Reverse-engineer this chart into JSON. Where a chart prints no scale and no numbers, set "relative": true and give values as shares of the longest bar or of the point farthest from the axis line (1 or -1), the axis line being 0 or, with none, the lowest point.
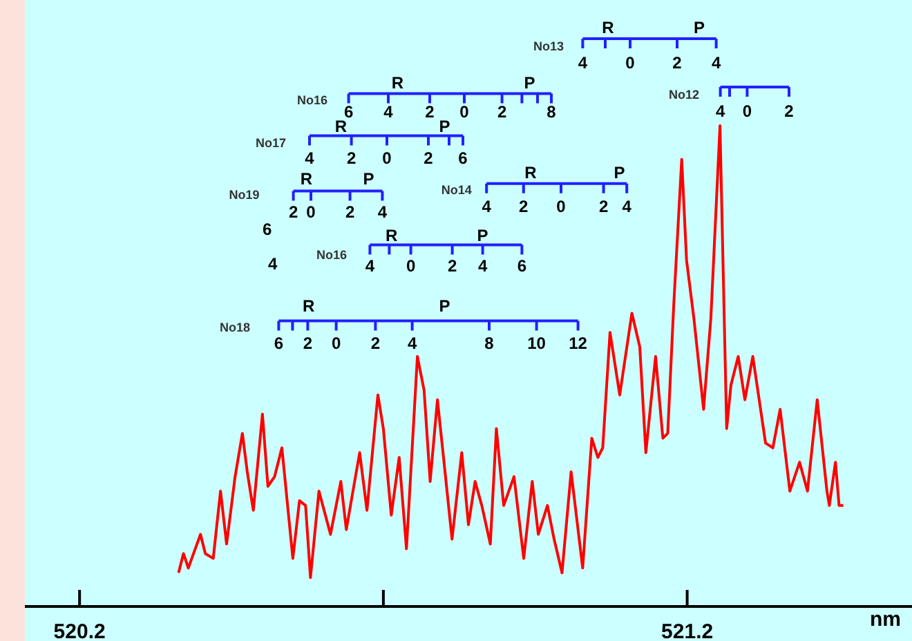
{
  "chart_data": {
    "type": "line",
    "relative": true,
    "xlabel": "nm",
    "x": [
      520.363,
      520.371,
      520.379,
      520.399,
      520.407,
      520.42,
      520.432,
      520.442,
      520.456,
      520.468,
      520.476,
      520.486,
      520.501,
      520.51,
      520.521,
      520.533,
      520.551,
      520.562,
      520.572,
      520.58,
      520.594,
      520.613,
      520.63,
      520.639,
      520.661,
      520.673,
      520.691,
      520.7,
      520.713,
      520.726,
      520.738,
      520.756,
      520.767,
      520.777,
      520.789,
      520.799,
      520.813,
      520.829,
      520.84,
      520.851,
      520.862,
      520.876,
      520.886,
      520.898,
      520.915,
      520.931,
      520.945,
      520.955,
      520.97,
      520.981,
      520.994,
      521.009,
      521.028,
      521.043,
      521.053,
      521.061,
      521.073,
      521.089,
      521.109,
      521.122,
      521.132,
      521.148,
      521.16,
      521.168,
      521.178,
      521.191,
      521.199,
      521.211,
      521.227,
      521.239,
      521.254,
      521.265,
      521.272,
      521.284,
      521.295,
      521.308,
      521.329,
      521.341,
      521.353,
      521.369,
      521.385,
      521.398,
      521.414,
      521.43,
      521.434,
      521.444,
      521.45,
      521.457
    ],
    "series": [
      {
        "color": "#ff0000",
        "values": [
          0.07,
          0.11,
          0.08,
          0.15,
          0.11,
          0.1,
          0.24,
          0.13,
          0.27,
          0.36,
          0.28,
          0.2,
          0.4,
          0.25,
          0.27,
          0.33,
          0.1,
          0.22,
          0.21,
          0.06,
          0.24,
          0.15,
          0.26,
          0.16,
          0.32,
          0.2,
          0.44,
          0.37,
          0.19,
          0.31,
          0.12,
          0.52,
          0.45,
          0.26,
          0.43,
          0.31,
          0.14,
          0.32,
          0.17,
          0.26,
          0.21,
          0.13,
          0.37,
          0.21,
          0.27,
          0.1,
          0.26,
          0.15,
          0.21,
          0.14,
          0.07,
          0.28,
          0.08,
          0.35,
          0.31,
          0.33,
          0.57,
          0.44,
          0.61,
          0.54,
          0.32,
          0.52,
          0.35,
          0.36,
          0.63,
          0.93,
          0.72,
          0.6,
          0.41,
          0.6,
          1,
          0.37,
          0.46,
          0.52,
          0.43,
          0.52,
          0.34,
          0.33,
          0.41,
          0.24,
          0.3,
          0.24,
          0.43,
          0.24,
          0.21,
          0.3,
          0.21,
          0.21
        ]
      }
    ],
    "xlim": [
      520.11,
      521.57
    ],
    "xticks": [
      520.2,
      {
        "value": 520.7,
        "label": null
      },
      521.2
    ],
    "annotations": [
      "No13",
      "R",
      "P",
      "4",
      "0",
      "2",
      "4",
      "No12",
      "4",
      "0",
      "2",
      "No16",
      "R",
      "P",
      "6",
      "4",
      "2",
      "0",
      "2",
      "8",
      "No17",
      "R",
      "P",
      "4",
      "2",
      "0",
      "2",
      "6",
      "No19",
      "R",
      "P",
      "2",
      "0",
      "2",
      "4",
      "No14",
      "R",
      "P",
      "4",
      "2",
      "0",
      "2",
      "4",
      "6",
      "4",
      "No16",
      "R",
      "P",
      "4",
      "0",
      "2",
      "4",
      "6",
      "No18",
      "R",
      "P",
      "6",
      "2",
      "0",
      "2",
      "4",
      "8",
      "10",
      "12"
    ]
  }
}
